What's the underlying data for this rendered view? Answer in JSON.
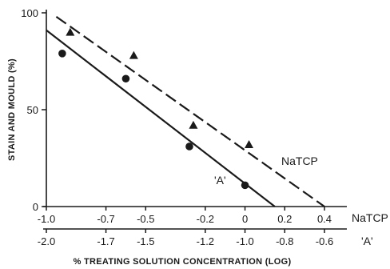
{
  "chart_data": {
    "type": "scatter",
    "ylabel": "STAIN AND MOULD (%)",
    "xlabel": "% TREATING SOLUTION CONCENTRATION (LOG)",
    "ylim": [
      0,
      100
    ],
    "yticks": [
      "0",
      "50",
      "100"
    ],
    "x_axes": [
      {
        "name": "NaTCP",
        "range": [
          -1.0,
          0.4
        ],
        "ticks": [
          "-1.0",
          "-0.7",
          "-0.5",
          "-0.2",
          "0",
          "0.2",
          "0.4"
        ]
      },
      {
        "name": "'A'",
        "range": [
          -2.0,
          -0.6
        ],
        "ticks": [
          "-2.0",
          "-1.7",
          "-1.5",
          "-1.2",
          "-1.0",
          "-0.8",
          "-0.6"
        ]
      }
    ],
    "series": [
      {
        "name": "NaTCP",
        "marker": "triangle",
        "line_style": "dashed",
        "points": [
          {
            "x": -0.88,
            "y": 90
          },
          {
            "x": -0.56,
            "y": 78
          },
          {
            "x": -0.26,
            "y": 42
          },
          {
            "x": 0.02,
            "y": 32
          }
        ],
        "fit_line": [
          {
            "x": -0.95,
            "y": 98
          },
          {
            "x": 0.4,
            "y": 0
          }
        ]
      },
      {
        "name": "'A'",
        "marker": "circle",
        "line_style": "solid",
        "points": [
          {
            "x": -1.92,
            "y": 79
          },
          {
            "x": -1.6,
            "y": 66
          },
          {
            "x": -1.28,
            "y": 31
          },
          {
            "x": -1.0,
            "y": 11
          }
        ],
        "fit_line": [
          {
            "x": -2.0,
            "y": 91
          },
          {
            "x": -0.85,
            "y": 0
          }
        ]
      }
    ],
    "grid": false,
    "colors": {
      "ink": "#1a1a1a"
    }
  }
}
